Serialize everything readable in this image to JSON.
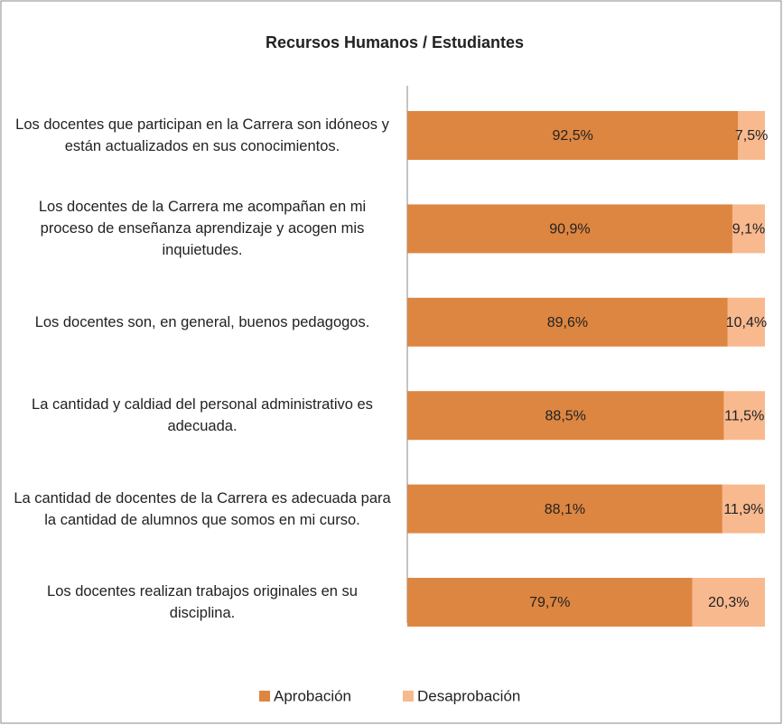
{
  "chart_data": {
    "type": "stacked-bar-horizontal",
    "title": "Recursos Humanos / Estudiantes",
    "categories": [
      "Los docentes que participan en la Carrera son idóneos y están actualizados en sus conocimientos.",
      "Los docentes de la Carrera me acompañan en mi proceso de enseñanza aprendizaje y acogen mis inquietudes.",
      "Los docentes son, en general, buenos pedagogos.",
      "La cantidad y caldiad del personal administrativo es adecuada.",
      "La cantidad de docentes de la Carrera es adecuada para la cantidad de alumnos que somos en mi curso.",
      "Los docentes realizan trabajos originales en su disciplina."
    ],
    "series": [
      {
        "name": "Aprobación",
        "color": "#dd8641",
        "values": [
          92.5,
          90.9,
          89.6,
          88.5,
          88.1,
          79.7
        ],
        "value_labels": [
          "92,5%",
          "90,9%",
          "89,6%",
          "88,5%",
          "88,1%",
          "79,7%"
        ]
      },
      {
        "name": "Desaprobación",
        "color": "#f8b98f",
        "values": [
          7.5,
          9.1,
          10.4,
          11.5,
          11.9,
          20.3
        ],
        "value_labels": [
          "7,5%",
          "9,1%",
          "10,4%",
          "11,5%",
          "11,9%",
          "20,3%"
        ]
      }
    ],
    "xlim": [
      0,
      100
    ],
    "legend": "bottom"
  }
}
